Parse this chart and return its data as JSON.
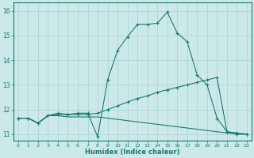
{
  "xlabel": "Humidex (Indice chaleur)",
  "background_color": "#cce9e9",
  "grid_color": "#aad0d0",
  "line_color": "#1a7a6a",
  "xlim": [
    -0.5,
    23.5
  ],
  "ylim": [
    10.75,
    16.35
  ],
  "yticks": [
    11,
    12,
    13,
    14,
    15,
    16
  ],
  "xticks": [
    0,
    1,
    2,
    3,
    4,
    5,
    6,
    7,
    8,
    9,
    10,
    11,
    12,
    13,
    14,
    15,
    16,
    17,
    18,
    19,
    20,
    21,
    22,
    23
  ],
  "series": [
    {
      "x": [
        0,
        1,
        2,
        3,
        4,
        5,
        6,
        7,
        8,
        9,
        10,
        11,
        12,
        13,
        14,
        15,
        16,
        17,
        18,
        19,
        20,
        21,
        22,
        23
      ],
      "y": [
        11.65,
        11.65,
        11.45,
        11.75,
        11.85,
        11.8,
        11.85,
        11.85,
        10.9,
        13.2,
        14.4,
        14.95,
        15.45,
        15.45,
        15.5,
        15.95,
        15.1,
        14.75,
        13.4,
        13.0,
        11.65,
        11.1,
        11.0,
        11.0
      ]
    },
    {
      "x": [
        0,
        1,
        2,
        3,
        4,
        5,
        6,
        7,
        8,
        9,
        10,
        11,
        12,
        13,
        14,
        15,
        16,
        17,
        18,
        19,
        20,
        21,
        22,
        23
      ],
      "y": [
        11.65,
        11.65,
        11.45,
        11.75,
        11.8,
        11.8,
        11.8,
        11.8,
        11.85,
        12.0,
        12.15,
        12.3,
        12.45,
        12.55,
        12.7,
        12.8,
        12.9,
        13.0,
        13.1,
        13.2,
        13.3,
        11.1,
        11.05,
        11.0
      ]
    },
    {
      "x": [
        0,
        1,
        2,
        3,
        4,
        5,
        6,
        7,
        8,
        9,
        10,
        11,
        12,
        13,
        14,
        15,
        16,
        17,
        18,
        19,
        20,
        21,
        22,
        23
      ],
      "y": [
        11.65,
        11.65,
        11.45,
        11.75,
        11.75,
        11.7,
        11.7,
        11.7,
        11.7,
        11.65,
        11.6,
        11.55,
        11.5,
        11.45,
        11.4,
        11.35,
        11.3,
        11.25,
        11.2,
        11.15,
        11.1,
        11.05,
        11.02,
        11.0
      ]
    }
  ]
}
